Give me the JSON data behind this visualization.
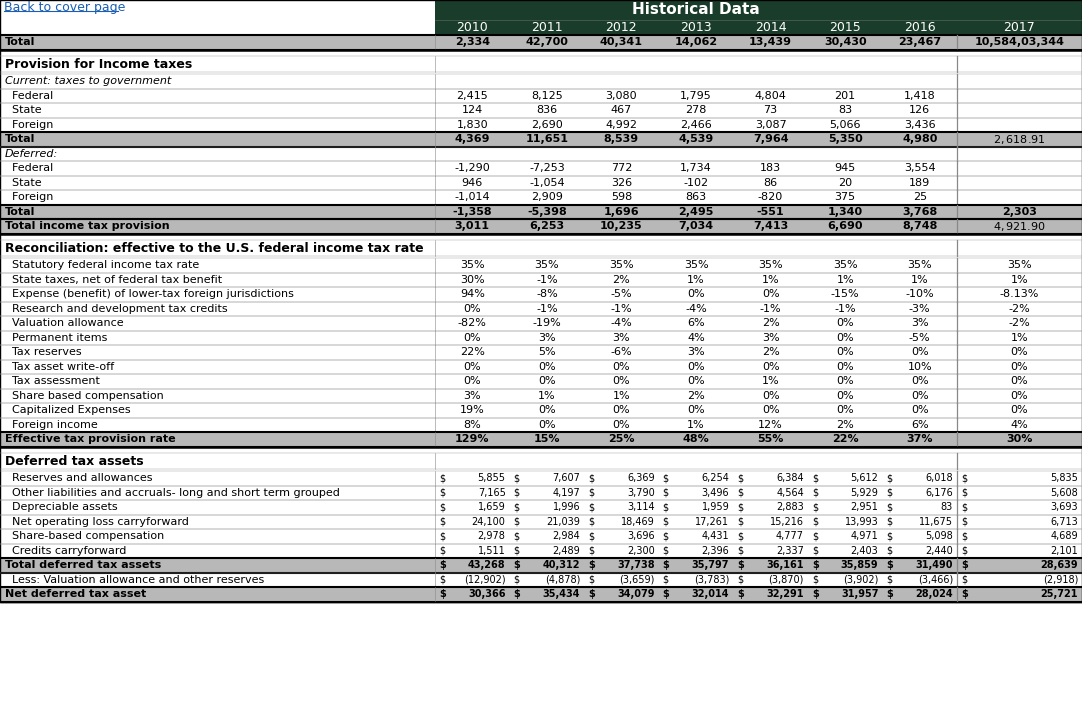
{
  "title": "Historical Data",
  "back_link": "Back to cover page",
  "years": [
    "2010",
    "2011",
    "2012",
    "2013",
    "2014",
    "2015",
    "2016",
    "2017"
  ],
  "header_bg": "#1a3d2b",
  "header_text": "#ffffff",
  "total_row_bg": "#b8b8b8",
  "sections": [
    {
      "type": "top_row",
      "label": "Total",
      "values": [
        "2,334",
        "42,700",
        "40,341",
        "14,062",
        "13,439",
        "30,430",
        "23,467",
        "10,584,03,344"
      ]
    },
    {
      "type": "section_title",
      "label": "Provision for Income taxes",
      "values": [
        "",
        "",
        "",
        "",
        "",
        "",
        "",
        ""
      ]
    },
    {
      "type": "italic_header",
      "label": "Current: taxes to government",
      "values": [
        "",
        "",
        "",
        "",
        "",
        "",
        "",
        ""
      ]
    },
    {
      "type": "data_row",
      "label": "  Federal",
      "values": [
        "2,415",
        "8,125",
        "3,080",
        "1,795",
        "4,804",
        "201",
        "1,418",
        ""
      ]
    },
    {
      "type": "data_row",
      "label": "  State",
      "values": [
        "124",
        "836",
        "467",
        "278",
        "73",
        "83",
        "126",
        ""
      ]
    },
    {
      "type": "data_row",
      "label": "  Foreign",
      "values": [
        "1,830",
        "2,690",
        "4,992",
        "2,466",
        "3,087",
        "5,066",
        "3,436",
        ""
      ]
    },
    {
      "type": "total_row",
      "label": "Total",
      "values": [
        "4,369",
        "11,651",
        "8,539",
        "4,539",
        "7,964",
        "5,350",
        "4,980",
        "$ 2,618.91 $"
      ]
    },
    {
      "type": "italic_header",
      "label": "Deferred:",
      "values": [
        "",
        "",
        "",
        "",
        "",
        "",
        "",
        ""
      ]
    },
    {
      "type": "data_row",
      "label": "  Federal",
      "values": [
        "-1,290",
        "-7,253",
        "772",
        "1,734",
        "183",
        "945",
        "3,554",
        ""
      ]
    },
    {
      "type": "data_row",
      "label": "  State",
      "values": [
        "946",
        "-1,054",
        "326",
        "-102",
        "86",
        "20",
        "189",
        ""
      ]
    },
    {
      "type": "data_row",
      "label": "  Foreign",
      "values": [
        "-1,014",
        "2,909",
        "598",
        "863",
        "-820",
        "375",
        "25",
        ""
      ]
    },
    {
      "type": "total_row",
      "label": "Total",
      "values": [
        "-1,358",
        "-5,398",
        "1,696",
        "2,495",
        "-551",
        "1,340",
        "3,768",
        "2,303"
      ]
    },
    {
      "type": "total_row",
      "label": "Total income tax provision",
      "values": [
        "3,011",
        "6,253",
        "10,235",
        "7,034",
        "7,413",
        "6,690",
        "8,748",
        "$ 4,921.90 $"
      ]
    },
    {
      "type": "section_title",
      "label": "Reconciliation: effective to the U.S. federal income tax rate",
      "values": [
        "",
        "",
        "",
        "",
        "",
        "",
        "",
        ""
      ]
    },
    {
      "type": "data_row",
      "label": "  Statutory federal income tax rate",
      "values": [
        "35%",
        "35%",
        "35%",
        "35%",
        "35%",
        "35%",
        "35%",
        "35%"
      ]
    },
    {
      "type": "data_row",
      "label": "  State taxes, net of federal tax benefit",
      "values": [
        "30%",
        "-1%",
        "2%",
        "1%",
        "1%",
        "1%",
        "1%",
        "1%"
      ]
    },
    {
      "type": "data_row",
      "label": "  Expense (benefit) of lower-tax foreign jurisdictions",
      "values": [
        "94%",
        "-8%",
        "-5%",
        "0%",
        "0%",
        "-15%",
        "-10%",
        "-8.13%"
      ]
    },
    {
      "type": "data_row",
      "label": "  Research and development tax credits",
      "values": [
        "0%",
        "-1%",
        "-1%",
        "-4%",
        "-1%",
        "-1%",
        "-3%",
        "-2%"
      ]
    },
    {
      "type": "data_row",
      "label": "  Valuation allowance",
      "values": [
        "-82%",
        "-19%",
        "-4%",
        "6%",
        "2%",
        "0%",
        "3%",
        "-2%"
      ]
    },
    {
      "type": "data_row",
      "label": "  Permanent items",
      "values": [
        "0%",
        "3%",
        "3%",
        "4%",
        "3%",
        "0%",
        "-5%",
        "1%"
      ]
    },
    {
      "type": "data_row",
      "label": "  Tax reserves",
      "values": [
        "22%",
        "5%",
        "-6%",
        "3%",
        "2%",
        "0%",
        "0%",
        "0%"
      ]
    },
    {
      "type": "data_row",
      "label": "  Tax asset write-off",
      "values": [
        "0%",
        "0%",
        "0%",
        "0%",
        "0%",
        "0%",
        "10%",
        "0%"
      ]
    },
    {
      "type": "data_row",
      "label": "  Tax assessment",
      "values": [
        "0%",
        "0%",
        "0%",
        "0%",
        "1%",
        "0%",
        "0%",
        "0%"
      ]
    },
    {
      "type": "data_row",
      "label": "  Share based compensation",
      "values": [
        "3%",
        "1%",
        "1%",
        "2%",
        "0%",
        "0%",
        "0%",
        "0%"
      ]
    },
    {
      "type": "data_row",
      "label": "  Capitalized Expenses",
      "values": [
        "19%",
        "0%",
        "0%",
        "0%",
        "0%",
        "0%",
        "0%",
        "0%"
      ]
    },
    {
      "type": "data_row",
      "label": "  Foreign income",
      "values": [
        "8%",
        "0%",
        "0%",
        "1%",
        "12%",
        "2%",
        "6%",
        "4%"
      ]
    },
    {
      "type": "total_row",
      "label": "Effective tax provision rate",
      "values": [
        "129%",
        "15%",
        "25%",
        "48%",
        "55%",
        "22%",
        "37%",
        "30%"
      ]
    },
    {
      "type": "section_title",
      "label": "Deferred tax assets",
      "values": [
        "",
        "",
        "",
        "",
        "",
        "",
        "",
        ""
      ]
    },
    {
      "type": "dollar_row",
      "label": "  Reserves and allowances",
      "values": [
        "5,855",
        "7,607",
        "6,369",
        "6,254",
        "6,384",
        "5,612",
        "6,018",
        "5,835"
      ]
    },
    {
      "type": "dollar_row",
      "label": "  Other liabilities and accruals- long and short term grouped",
      "values": [
        "7,165",
        "4,197",
        "3,790",
        "3,496",
        "4,564",
        "5,929",
        "6,176",
        "5,608"
      ]
    },
    {
      "type": "dollar_row",
      "label": "  Depreciable assets",
      "values": [
        "1,659",
        "1,996",
        "3,114",
        "1,959",
        "2,883",
        "2,951",
        "83",
        "3,693"
      ]
    },
    {
      "type": "dollar_row",
      "label": "  Net operating loss carryforward",
      "values": [
        "24,100",
        "21,039",
        "18,469",
        "17,261",
        "15,216",
        "13,993",
        "11,675",
        "6,713"
      ]
    },
    {
      "type": "dollar_row",
      "label": "  Share-based compensation",
      "values": [
        "2,978",
        "2,984",
        "3,696",
        "4,431",
        "4,777",
        "4,971",
        "5,098",
        "4,689"
      ]
    },
    {
      "type": "dollar_row",
      "label": "  Credits carryforward",
      "values": [
        "1,511",
        "2,489",
        "2,300",
        "2,396",
        "2,337",
        "2,403",
        "2,440",
        "2,101"
      ]
    },
    {
      "type": "total_dollar_row",
      "label": "Total deferred tax assets",
      "values": [
        "43,268",
        "40,312",
        "37,738",
        "35,797",
        "36,161",
        "35,859",
        "31,490",
        "28,639"
      ]
    },
    {
      "type": "dollar_row",
      "label": "  Less: Valuation allowance and other reserves",
      "values": [
        "(12,902)",
        "(4,878)",
        "(3,659)",
        "(3,783)",
        "(3,870)",
        "(3,902)",
        "(3,466)",
        "(2,918)"
      ]
    },
    {
      "type": "total_dollar_row",
      "label": "Net deferred tax asset",
      "values": [
        "30,366",
        "35,434",
        "34,079",
        "32,014",
        "32,291",
        "31,957",
        "28,024",
        "25,721"
      ]
    }
  ]
}
